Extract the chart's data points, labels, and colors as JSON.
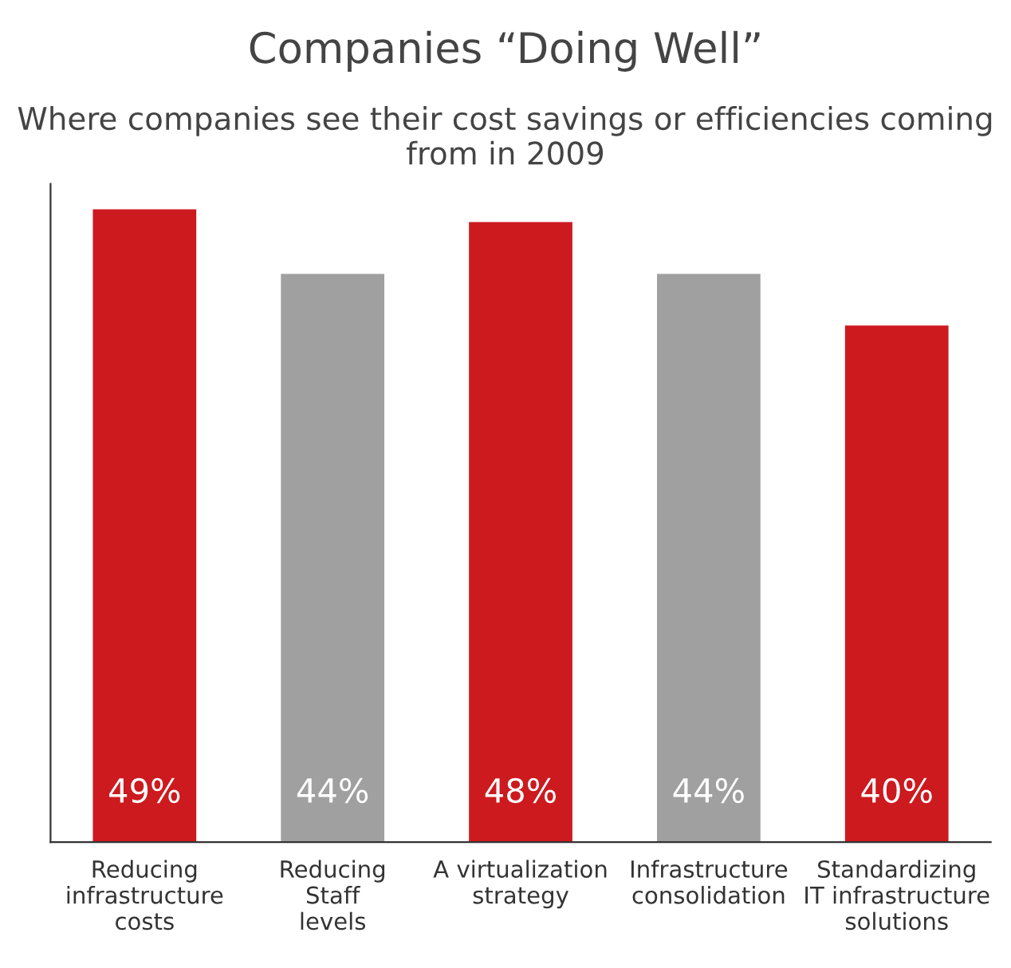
{
  "chart_data": {
    "type": "bar",
    "title": "Companies “Doing Well”",
    "subtitle": "Where companies see their cost savings or efficiencies coming from in 2009",
    "categories": [
      "Reducing\ninfrastructure\ncosts",
      "Reducing\nStaff\nlevels",
      "A virtualization\nstrategy",
      "Infrastructure\nconsolidation",
      "Standardizing\nIT infrastructure\nsolutions"
    ],
    "values": [
      49,
      44,
      48,
      44,
      40
    ],
    "colors": [
      "#cc1a1f",
      "#a0a0a0",
      "#cc1a1f",
      "#a0a0a0",
      "#cc1a1f"
    ],
    "value_labels": [
      "49%",
      "44%",
      "48%",
      "44%",
      "40%"
    ],
    "grid": false,
    "legend": false
  }
}
